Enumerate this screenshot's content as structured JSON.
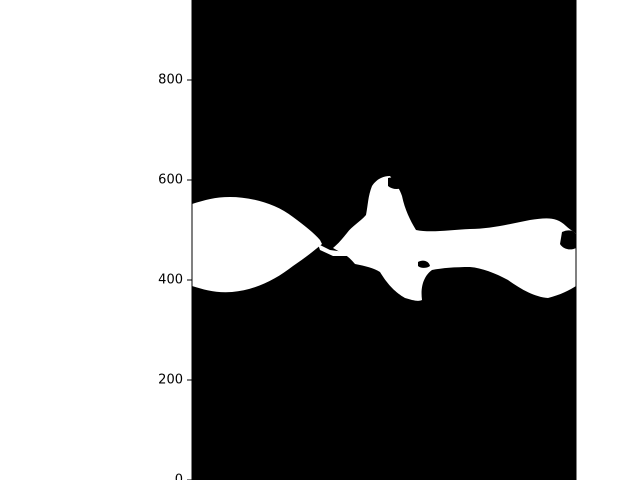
{
  "chart_data": {
    "type": "heatmap",
    "title": "",
    "xlabel": "",
    "ylabel": "",
    "colormap": "binary",
    "colors": {
      "background": "#000000",
      "foreground": "#ffffff",
      "page": "#ffffff",
      "text": "#000000"
    },
    "grid": false,
    "ylim": [
      0,
      960
    ],
    "yticks": [
      {
        "value": 0,
        "label": "0"
      },
      {
        "value": 200,
        "label": "200"
      },
      {
        "value": 400,
        "label": "400"
      },
      {
        "value": 600,
        "label": "600"
      },
      {
        "value": 800,
        "label": "800"
      }
    ],
    "xlim": [
      0,
      384
    ],
    "xticks_visible": false
  }
}
